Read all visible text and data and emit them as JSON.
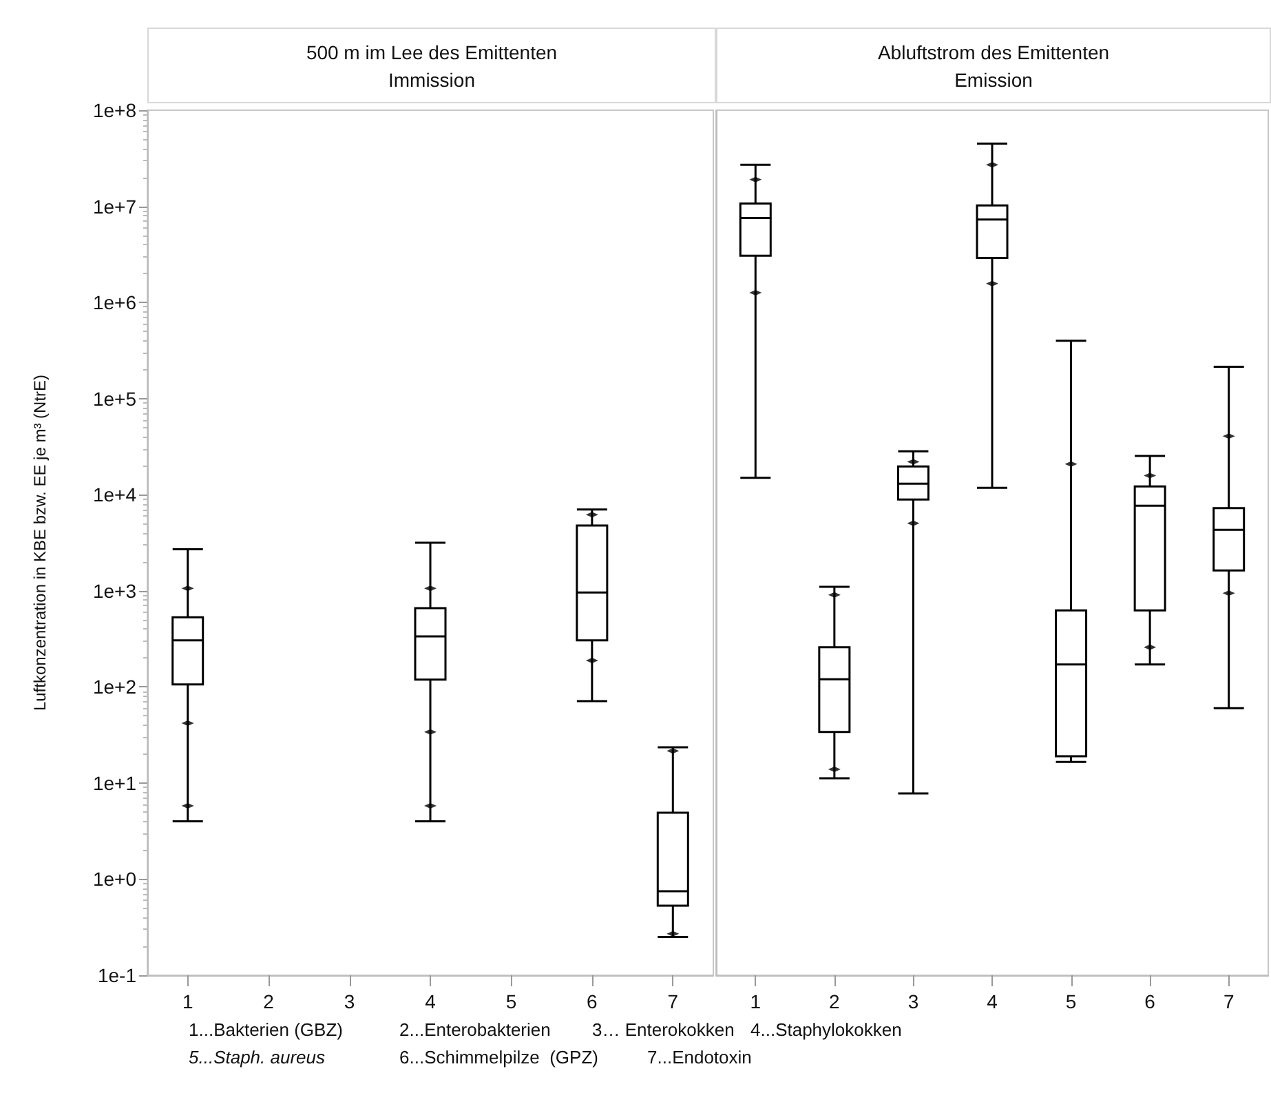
{
  "chart_data": [
    {
      "type": "box",
      "title": "500 m im Lee des Emittenten",
      "subtitle": "Immission",
      "ylabel": "Luftkonzentration in KBE bzw. EE je m³ (NtrE)",
      "categories": [
        "1",
        "2",
        "3",
        "4",
        "5",
        "6",
        "7"
      ],
      "boxes": [
        {
          "low": 4.0,
          "q1": 106,
          "median": 305,
          "q3": 529,
          "high": 2700,
          "outliers": [
            5.8,
            42,
            1060
          ]
        },
        null,
        null,
        {
          "low": 4.0,
          "q1": 119,
          "median": 336,
          "q3": 660,
          "high": 3160,
          "outliers": [
            5.8,
            34,
            1060
          ]
        },
        null,
        {
          "low": 71,
          "q1": 305,
          "median": 960,
          "q3": 4770,
          "high": 7000,
          "outliers": [
            188,
            6200
          ]
        },
        {
          "low": 0.25,
          "q1": 0.53,
          "median": 0.75,
          "q3": 4.9,
          "high": 23.5,
          "outliers": [
            0.27,
            21.6
          ]
        }
      ],
      "ylim": [
        0.1,
        100000000
      ],
      "yticks": [
        {
          "value": 0.1,
          "label": "1e-1"
        },
        {
          "value": 1,
          "label": "1e+0"
        },
        {
          "value": 10,
          "label": "1e+1"
        },
        {
          "value": 100,
          "label": "1e+2"
        },
        {
          "value": 1000,
          "label": "1e+3"
        },
        {
          "value": 10000,
          "label": "1e+4"
        },
        {
          "value": 100000,
          "label": "1e+5"
        },
        {
          "value": 1000000,
          "label": "1e+6"
        },
        {
          "value": 10000000,
          "label": "1e+7"
        },
        {
          "value": 100000000,
          "label": "1e+8"
        }
      ],
      "log": "y",
      "grid": false,
      "color": "#000000",
      "annotations": [
        "1...Bakterien (GBZ)",
        "2...Enterobakterien",
        "3… Enterokokken",
        "4...Staphylokokken",
        "5...Staph. aureus",
        "6...Schimmelpilze  (GPZ)",
        "7...Endotoxin"
      ]
    },
    {
      "type": "box",
      "title": "Abluftstrom des Emittenten",
      "subtitle": "Emission",
      "categories": [
        "1",
        "2",
        "3",
        "4",
        "5",
        "6",
        "7"
      ],
      "boxes": [
        {
          "low": 15000,
          "q1": 3060000,
          "median": 7550000,
          "q3": 10700000,
          "high": 27000000,
          "outliers": [
            1260000,
            19000000
          ]
        },
        {
          "low": 11.2,
          "q1": 34,
          "median": 120,
          "q3": 259,
          "high": 1100,
          "outliers": [
            13.9,
            906
          ]
        },
        {
          "low": 7.8,
          "q1": 8900,
          "median": 13000,
          "q3": 19700,
          "high": 28300,
          "outliers": [
            5030,
            22000
          ]
        },
        {
          "low": 11800,
          "q1": 2900000,
          "median": 7300000,
          "q3": 10200000,
          "high": 45000000,
          "outliers": [
            1570000,
            27000000
          ]
        },
        {
          "low": 16.6,
          "q1": 19,
          "median": 171,
          "q3": 624,
          "high": 400000,
          "outliers": [
            20800
          ]
        },
        {
          "low": 171,
          "q1": 624,
          "median": 7670,
          "q3": 12200,
          "high": 25300,
          "outliers": [
            259,
            15800
          ]
        },
        {
          "low": 60,
          "q1": 1625,
          "median": 4310,
          "q3": 7240,
          "high": 214000,
          "outliers": [
            946,
            40700
          ]
        }
      ],
      "ylim": [
        0.1,
        100000000
      ],
      "log": "y",
      "grid": false,
      "color": "#000000",
      "tick_labels": "x"
    }
  ]
}
